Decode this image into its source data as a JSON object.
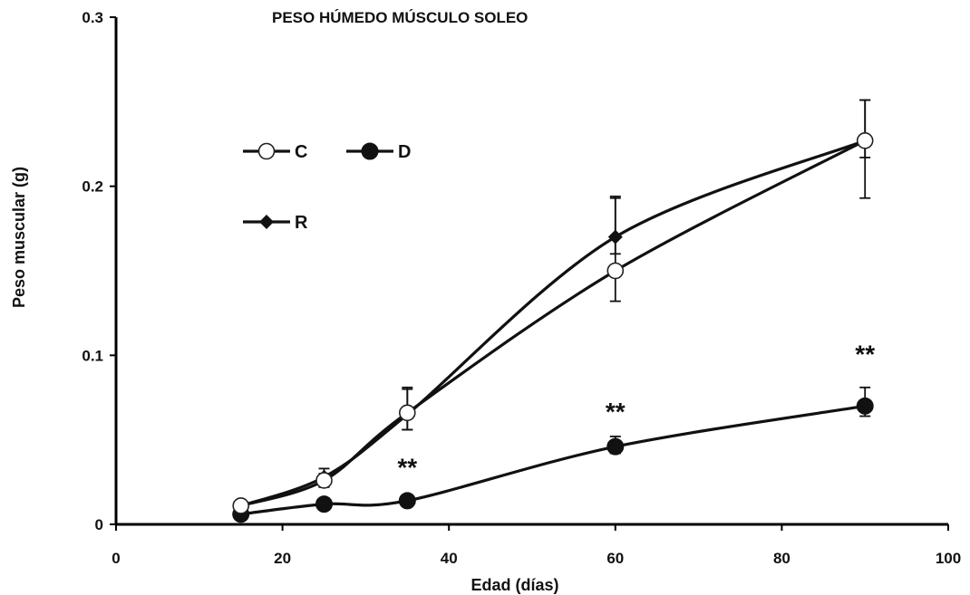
{
  "chart_data": {
    "type": "line",
    "title": "PESO HÚMEDO MÚSCULO SOLEO",
    "xlabel": "Edad (días)",
    "ylabel": "Peso muscular (g)",
    "xlim": [
      0,
      100
    ],
    "ylim": [
      0,
      0.3
    ],
    "x_ticks": [
      0,
      20,
      40,
      60,
      80,
      100
    ],
    "x_tick_labels": [
      "0",
      "20",
      "40",
      "60",
      "80",
      "100"
    ],
    "y_ticks": [
      0,
      0.1,
      0.2,
      0.3
    ],
    "y_tick_labels": [
      "0",
      "0.1",
      "0.2",
      "0.3"
    ],
    "grid": false,
    "legend_position": "upper-left",
    "series": [
      {
        "name": "C",
        "marker": "open-circle",
        "color": "#111111",
        "x": [
          15,
          25,
          35,
          60,
          90
        ],
        "y": [
          0.011,
          0.026,
          0.066,
          0.15,
          0.227
        ],
        "err_upper": [
          0.002,
          0.004,
          0.015,
          0.044,
          0.024
        ],
        "err_lower": [
          0.002,
          0.004,
          0.01,
          0.018,
          0.034
        ]
      },
      {
        "name": "D",
        "marker": "filled-circle",
        "color": "#111111",
        "x": [
          15,
          25,
          35,
          60,
          90
        ],
        "y": [
          0.006,
          0.012,
          0.014,
          0.046,
          0.07
        ],
        "err_upper": [
          0.001,
          0.002,
          0.002,
          0.006,
          0.011
        ],
        "err_lower": [
          0.001,
          0.002,
          0.002,
          0.004,
          0.006
        ]
      },
      {
        "name": "R",
        "marker": "filled-diamond",
        "color": "#111111",
        "x": [
          15,
          25,
          35,
          60,
          90
        ],
        "y": [
          0.011,
          0.028,
          0.065,
          0.17,
          0.227
        ],
        "err_upper": [
          0.002,
          0.005,
          0.015,
          0.023,
          0.024
        ],
        "err_lower": [
          0.002,
          0.004,
          0.009,
          0.01,
          0.01
        ]
      }
    ],
    "annotations": [
      {
        "text": "**",
        "x": 35,
        "y": 0.034
      },
      {
        "text": "**",
        "x": 60,
        "y": 0.067
      },
      {
        "text": "**",
        "x": 90,
        "y": 0.101
      }
    ]
  }
}
